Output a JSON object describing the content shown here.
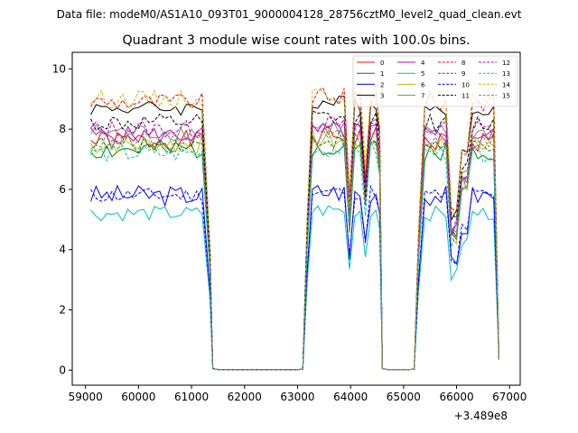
{
  "figure": {
    "suptitle": "Data file: modeM0/AS1A10_093T01_9000004128_28756cztM0_level2_quad_clean.evt"
  },
  "chart_data": {
    "type": "line",
    "title": "Quadrant 3 module wise count rates with 100.0s bins.",
    "xlabel": "",
    "ylabel": "",
    "x_offset_label": "+3.489e8",
    "xlim": [
      58750,
      67200
    ],
    "ylim": [
      -0.5,
      10.55
    ],
    "xticks": [
      59000,
      60000,
      61000,
      62000,
      63000,
      64000,
      65000,
      66000,
      67000
    ],
    "yticks": [
      0,
      2,
      4,
      6,
      8,
      10
    ],
    "grid": false,
    "legend": {
      "location": "top-right",
      "columns": 4
    },
    "segments": [
      [
        59100,
        61400
      ],
      [
        63100,
        64600
      ],
      [
        65200,
        66800
      ]
    ],
    "series": [
      {
        "name": "0",
        "color": "#ff0000",
        "dash": "solid",
        "level": 7.6,
        "amp": 0.35,
        "seed": 1
      },
      {
        "name": "1",
        "color": "#008000",
        "dash": "solid",
        "level": 7.3,
        "amp": 0.35,
        "seed": 2
      },
      {
        "name": "2",
        "color": "#0000ff",
        "dash": "solid",
        "level": 5.8,
        "amp": 0.35,
        "seed": 3
      },
      {
        "name": "3",
        "color": "#000000",
        "dash": "solid",
        "level": 8.7,
        "amp": 0.25,
        "seed": 4
      },
      {
        "name": "4",
        "color": "#bf00bf",
        "dash": "solid",
        "level": 7.8,
        "amp": 0.3,
        "seed": 5
      },
      {
        "name": "5",
        "color": "#00bfbf",
        "dash": "solid",
        "level": 5.2,
        "amp": 0.25,
        "seed": 6
      },
      {
        "name": "6",
        "color": "#bfbf00",
        "dash": "solid",
        "level": 7.5,
        "amp": 0.35,
        "seed": 7
      },
      {
        "name": "7",
        "color": "#808080",
        "dash": "solid",
        "level": 7.9,
        "amp": 0.3,
        "seed": 8
      },
      {
        "name": "8",
        "color": "#ff0000",
        "dash": "dashed",
        "level": 8.9,
        "amp": 0.3,
        "seed": 9
      },
      {
        "name": "9",
        "color": "#008000",
        "dash": "dashed",
        "level": 7.5,
        "amp": 0.3,
        "seed": 10
      },
      {
        "name": "10",
        "color": "#0000ff",
        "dash": "dashed",
        "level": 5.8,
        "amp": 0.25,
        "seed": 11
      },
      {
        "name": "11",
        "color": "#000000",
        "dash": "dashed",
        "level": 8.2,
        "amp": 0.3,
        "seed": 12
      },
      {
        "name": "12",
        "color": "#bf00bf",
        "dash": "dashed",
        "level": 8.0,
        "amp": 0.3,
        "seed": 13
      },
      {
        "name": "13",
        "color": "#00bfbf",
        "dash": "dashed",
        "level": 7.2,
        "amp": 0.3,
        "seed": 14
      },
      {
        "name": "14",
        "color": "#bfbf00",
        "dash": "dashed",
        "level": 9.0,
        "amp": 0.3,
        "seed": 15
      },
      {
        "name": "15",
        "color": "#808080",
        "dash": "dashed",
        "level": 7.6,
        "amp": 0.3,
        "seed": 16
      }
    ]
  }
}
